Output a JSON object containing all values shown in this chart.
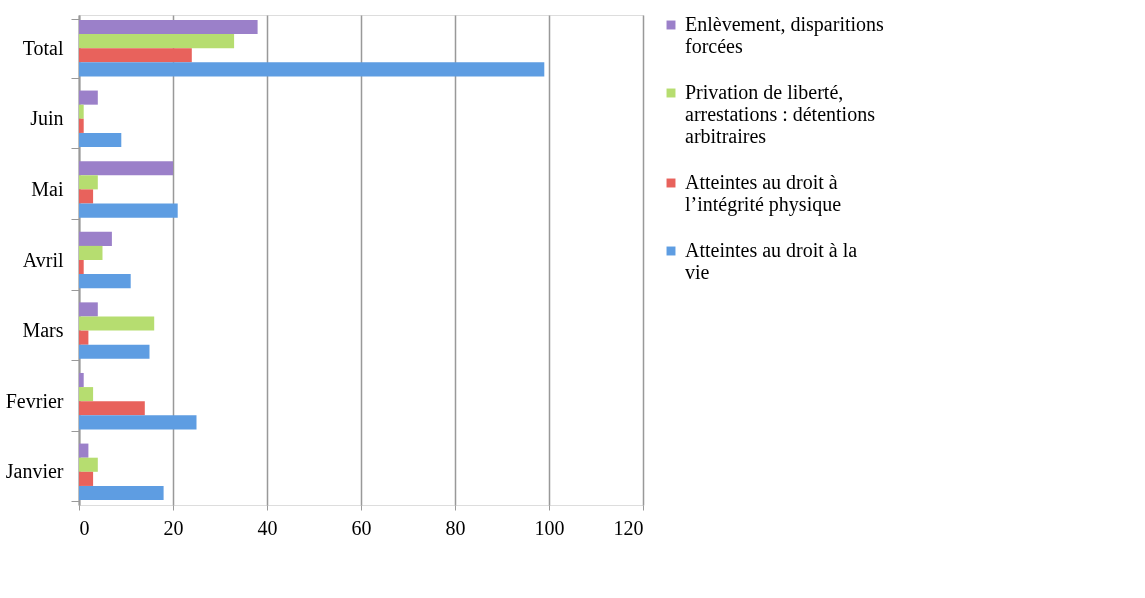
{
  "chart_data": {
    "type": "bar",
    "orientation": "horizontal",
    "categories": [
      "Total",
      "Juin",
      "Mai",
      "Avril",
      "Mars",
      "Fevrier",
      "Janvier"
    ],
    "series": [
      {
        "name": "Enlèvement,  disparitions forcées",
        "color": "#9b80c9",
        "values": [
          38,
          4,
          20,
          7,
          4,
          1,
          2
        ]
      },
      {
        "name": "Privation de liberté, arrestations : détentions arbitraires",
        "color": "#b6dd70",
        "values": [
          33,
          1,
          4,
          5,
          16,
          3,
          4
        ]
      },
      {
        "name": "Atteintes au droit à l’intégrité physique",
        "color": "#e8625c",
        "values": [
          24,
          1,
          3,
          1,
          2,
          14,
          3
        ]
      },
      {
        "name": "Atteintes au droit à la vie",
        "color": "#5e9de2",
        "values": [
          99,
          9,
          21,
          11,
          15,
          25,
          18
        ]
      }
    ],
    "xlim": [
      0,
      120
    ],
    "xticks": [
      0,
      20,
      40,
      60,
      80,
      100,
      120
    ],
    "grid": "x",
    "legend": "right"
  }
}
